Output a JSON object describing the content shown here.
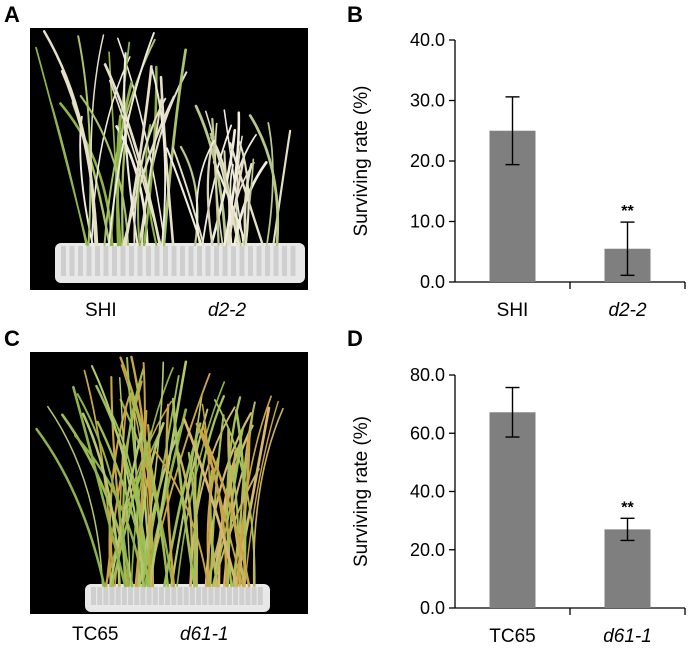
{
  "panels": {
    "a": {
      "letter": "A",
      "labels": [
        "SHI",
        "d2-2"
      ]
    },
    "b": {
      "letter": "B"
    },
    "c": {
      "letter": "C",
      "labels": [
        "TC65",
        "d61-1"
      ]
    },
    "d": {
      "letter": "D"
    }
  },
  "colors": {
    "bar": "#7f7f7f",
    "axis": "#000000",
    "leaf_green": "#8fb34a",
    "leaf_pale": "#e6e0c8",
    "tray": "#e8e8e8",
    "leaf_yellow": "#c9a545"
  },
  "chart_data": [
    {
      "type": "bar",
      "categories": [
        "SHI",
        "d2-2"
      ],
      "values": [
        25.0,
        5.5
      ],
      "errors": [
        5.6,
        4.4
      ],
      "significance": [
        "",
        "**"
      ],
      "ylabel": "Surviving rate (%)",
      "ylim": [
        0,
        40
      ],
      "yticks": [
        "0.0",
        "10.0",
        "20.0",
        "30.0",
        "40.0"
      ],
      "ytick_values": [
        0,
        10,
        20,
        30,
        40
      ],
      "italic_categories": [
        false,
        true
      ]
    },
    {
      "type": "bar",
      "categories": [
        "TC65",
        "d61-1"
      ],
      "values": [
        67.2,
        27.0
      ],
      "errors": [
        8.5,
        3.8
      ],
      "significance": [
        "",
        "**"
      ],
      "ylabel": "Surviving rate (%)",
      "ylim": [
        0,
        80
      ],
      "yticks": [
        "0.0",
        "20.0",
        "40.0",
        "60.0",
        "80.0"
      ],
      "ytick_values": [
        0,
        20,
        40,
        60,
        80
      ],
      "italic_categories": [
        false,
        true
      ]
    }
  ]
}
